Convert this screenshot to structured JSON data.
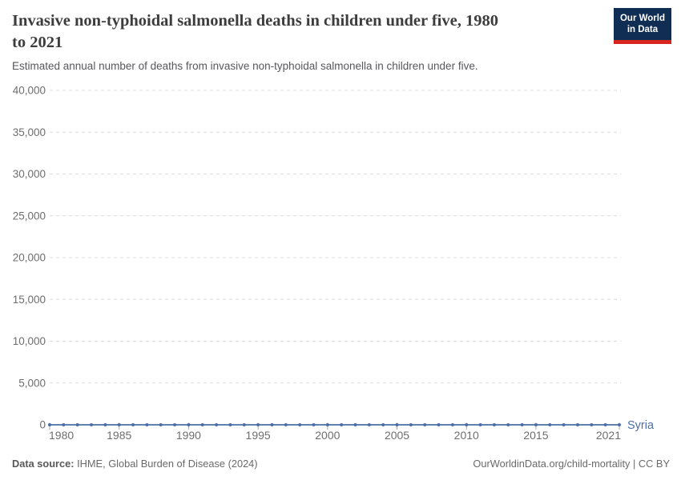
{
  "header": {
    "title_lines": [
      "Invasive non-typhoidal salmonella deaths in children under five, 1980",
      "to 2021"
    ],
    "subtitle": "Estimated annual number of deaths from invasive non-typhoidal salmonella in children under five."
  },
  "logo": {
    "line1": "Our World",
    "line2": "in Data"
  },
  "chart_data": {
    "type": "line",
    "title": "Invasive non-typhoidal salmonella deaths in children under five, 1980 to 2021",
    "subtitle": "Estimated annual number of deaths from invasive non-typhoidal salmonella in children under five.",
    "xlabel": "",
    "ylabel": "",
    "x": [
      1980,
      1981,
      1982,
      1983,
      1984,
      1985,
      1986,
      1987,
      1988,
      1989,
      1990,
      1991,
      1992,
      1993,
      1994,
      1995,
      1996,
      1997,
      1998,
      1999,
      2000,
      2001,
      2002,
      2003,
      2004,
      2005,
      2006,
      2007,
      2008,
      2009,
      2010,
      2011,
      2012,
      2013,
      2014,
      2015,
      2016,
      2017,
      2018,
      2019,
      2020,
      2021
    ],
    "series": [
      {
        "name": "Syria",
        "color": "#4c6fa8",
        "values": [
          0,
          0,
          0,
          0,
          0,
          0,
          0,
          0,
          0,
          0,
          0,
          0,
          0,
          0,
          0,
          0,
          0,
          0,
          0,
          0,
          0,
          0,
          0,
          0,
          0,
          0,
          0,
          0,
          0,
          0,
          0,
          0,
          0,
          0,
          0,
          0,
          0,
          0,
          0,
          0,
          0,
          0
        ]
      }
    ],
    "xticks": [
      1980,
      1985,
      1990,
      1995,
      2000,
      2005,
      2010,
      2015,
      2021
    ],
    "yticks": [
      0,
      5000,
      10000,
      15000,
      20000,
      25000,
      30000,
      35000,
      40000
    ],
    "ytick_labels": [
      "0",
      "5,000",
      "10,000",
      "15,000",
      "20,000",
      "25,000",
      "30,000",
      "35,000",
      "40,000"
    ],
    "xlim": [
      1980,
      2021
    ],
    "ylim": [
      0,
      40000
    ],
    "grid": "horizontal-dashed",
    "legend_position": "end-of-line",
    "axis_label_color": "#6e6e6e",
    "gridline_color": "#dcdcdc"
  },
  "footer": {
    "source_label": "Data source:",
    "source_text": " IHME, Global Burden of Disease (2024)",
    "credit": "OurWorldinData.org/child-mortality | CC BY"
  }
}
